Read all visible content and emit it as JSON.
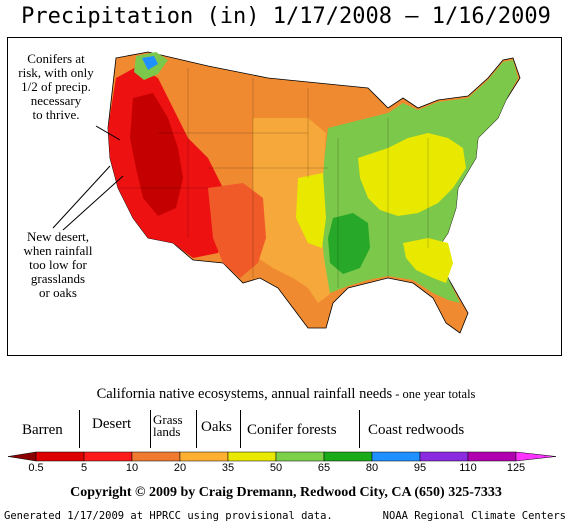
{
  "title": "Precipitation (in) 1/17/2008 – 1/16/2009",
  "annotations": {
    "conifers": [
      "Conifers at",
      "risk, with only",
      "1/2 of precip.",
      "necessary",
      "to thrive."
    ],
    "desert": [
      "New desert,",
      "when rainfall",
      "too low for",
      "grasslands",
      "or oaks"
    ]
  },
  "ecosystems": {
    "heading_main": "California native ecosystems, annual rainfall needs",
    "heading_small": " - one year totals",
    "labels": {
      "barren": "Barren",
      "desert": "Desert",
      "grass_top": "Grass",
      "grass_bottom": "lands",
      "oaks": "Oaks",
      "conifer": "Conifer forests",
      "redwoods": "Coast redwoods"
    }
  },
  "legend": {
    "ticks": [
      "0.5",
      "5",
      "10",
      "20",
      "35",
      "50",
      "65",
      "80",
      "95",
      "110",
      "125"
    ],
    "colors": [
      "#8b0000",
      "#dd0000",
      "#ff1a1a",
      "#f07a30",
      "#ffb030",
      "#e8e800",
      "#7cd04a",
      "#1aaa1a",
      "#1e90ff",
      "#8a2be2",
      "#b000b0",
      "#ff33ff"
    ]
  },
  "map": {
    "colors": {
      "dark_red": "#c40000",
      "red": "#ee1111",
      "orange_red": "#f05a28",
      "orange": "#f08a30",
      "light_orange": "#f7a83a",
      "yellow": "#e8e800",
      "green": "#7cc84a",
      "dark_green": "#28a828",
      "blue": "#1e90ff"
    }
  },
  "copyright": "Copyright © 2009 by Craig Dremann, Redwood City, CA (650) 325-7333",
  "footer": {
    "left": "Generated 1/17/2009 at HPRCC using provisional data.",
    "right": "NOAA Regional Climate Centers"
  }
}
